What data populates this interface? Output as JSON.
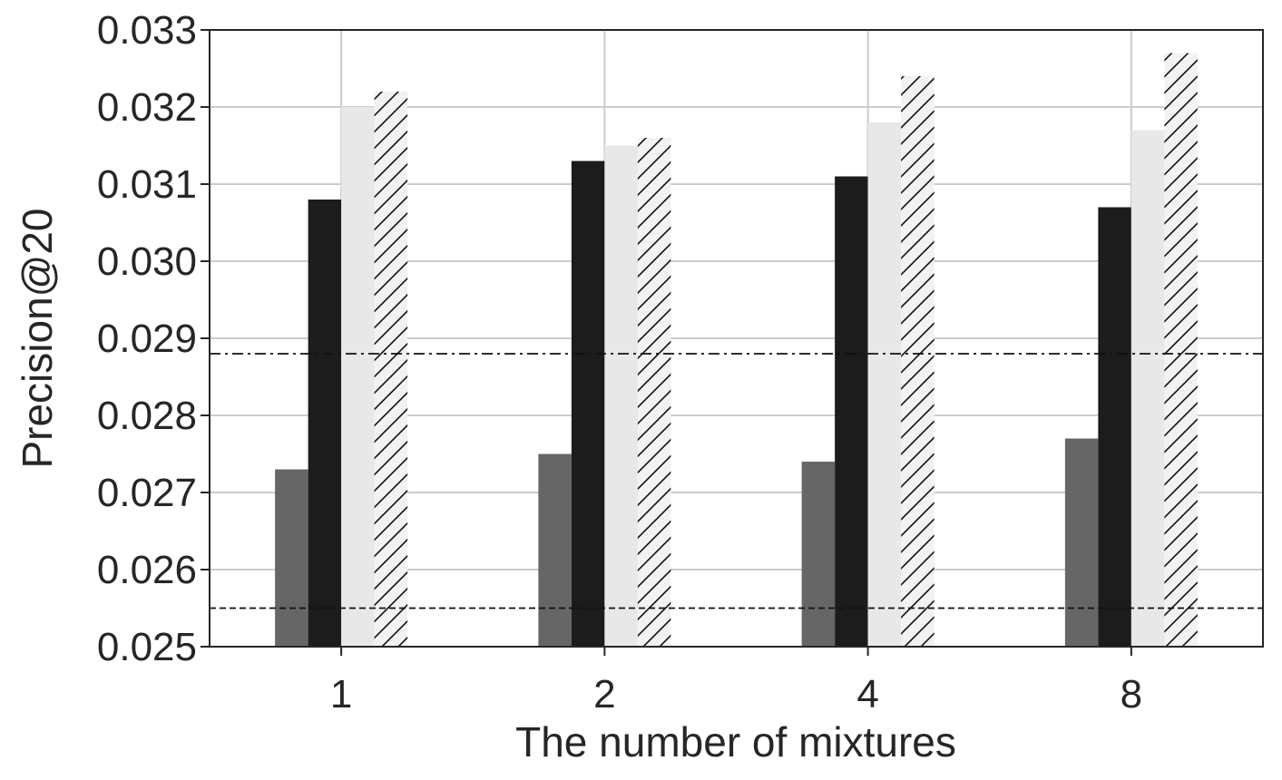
{
  "chart_data": {
    "type": "bar",
    "title": "",
    "xlabel": "The number of mixtures",
    "ylabel": "Precision@20",
    "categories": [
      "1",
      "2",
      "4",
      "8"
    ],
    "ylim": [
      0.025,
      0.033
    ],
    "yticks": [
      "0.025",
      "0.026",
      "0.027",
      "0.028",
      "0.029",
      "0.030",
      "0.031",
      "0.032",
      "0.033"
    ],
    "grid": true,
    "legend": "none",
    "series": [
      {
        "color": "#666666",
        "pattern": "solid",
        "values": [
          0.0273,
          0.0275,
          0.0274,
          0.0277
        ]
      },
      {
        "color": "#1c1c1c",
        "pattern": "solid",
        "values": [
          0.0308,
          0.0313,
          0.0311,
          0.0307
        ]
      },
      {
        "color": "#e8e8e8",
        "pattern": "solid",
        "values": [
          0.032,
          0.0315,
          0.0318,
          0.0317
        ]
      },
      {
        "color": "#f2f2f2",
        "pattern": "hatch",
        "values": [
          0.0322,
          0.0316,
          0.0324,
          0.0327
        ]
      }
    ],
    "reference_lines": [
      {
        "style": "dash-dot",
        "value": 0.0288
      },
      {
        "style": "dashed",
        "value": 0.0255
      }
    ]
  }
}
